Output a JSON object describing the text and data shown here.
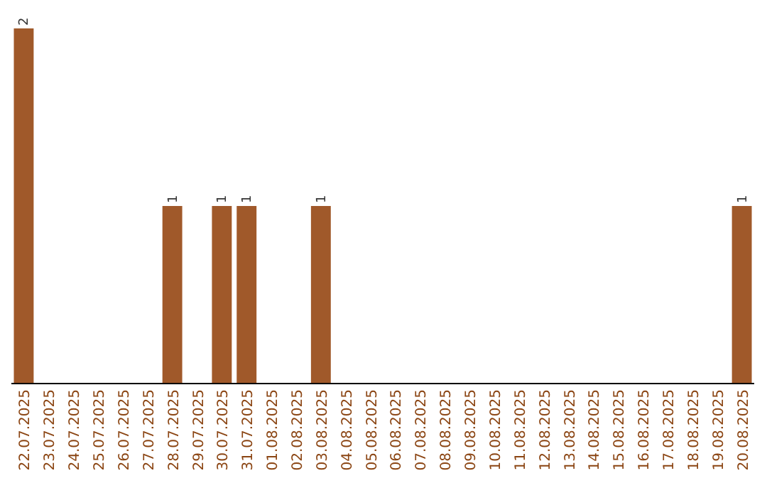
{
  "chart_data": {
    "type": "bar",
    "categories": [
      "22.07.2025",
      "23.07.2025",
      "24.07.2025",
      "25.07.2025",
      "26.07.2025",
      "27.07.2025",
      "28.07.2025",
      "29.07.2025",
      "30.07.2025",
      "31.07.2025",
      "01.08.2025",
      "02.08.2025",
      "03.08.2025",
      "04.08.2025",
      "05.08.2025",
      "06.08.2025",
      "07.08.2025",
      "08.08.2025",
      "09.08.2025",
      "10.08.2025",
      "11.08.2025",
      "12.08.2025",
      "13.08.2025",
      "14.08.2025",
      "15.08.2025",
      "16.08.2025",
      "17.08.2025",
      "18.08.2025",
      "19.08.2025",
      "20.08.2025"
    ],
    "values": [
      2,
      0,
      0,
      0,
      0,
      0,
      1,
      0,
      1,
      1,
      0,
      0,
      1,
      0,
      0,
      0,
      0,
      0,
      0,
      0,
      0,
      0,
      0,
      0,
      0,
      0,
      0,
      0,
      0,
      1
    ],
    "value_labels": [
      "2",
      null,
      null,
      null,
      null,
      null,
      "1",
      null,
      "1",
      "1",
      null,
      null,
      "1",
      null,
      null,
      null,
      null,
      null,
      null,
      null,
      null,
      null,
      null,
      null,
      null,
      null,
      null,
      null,
      null,
      "1"
    ],
    "color": "#a0592a"
  }
}
